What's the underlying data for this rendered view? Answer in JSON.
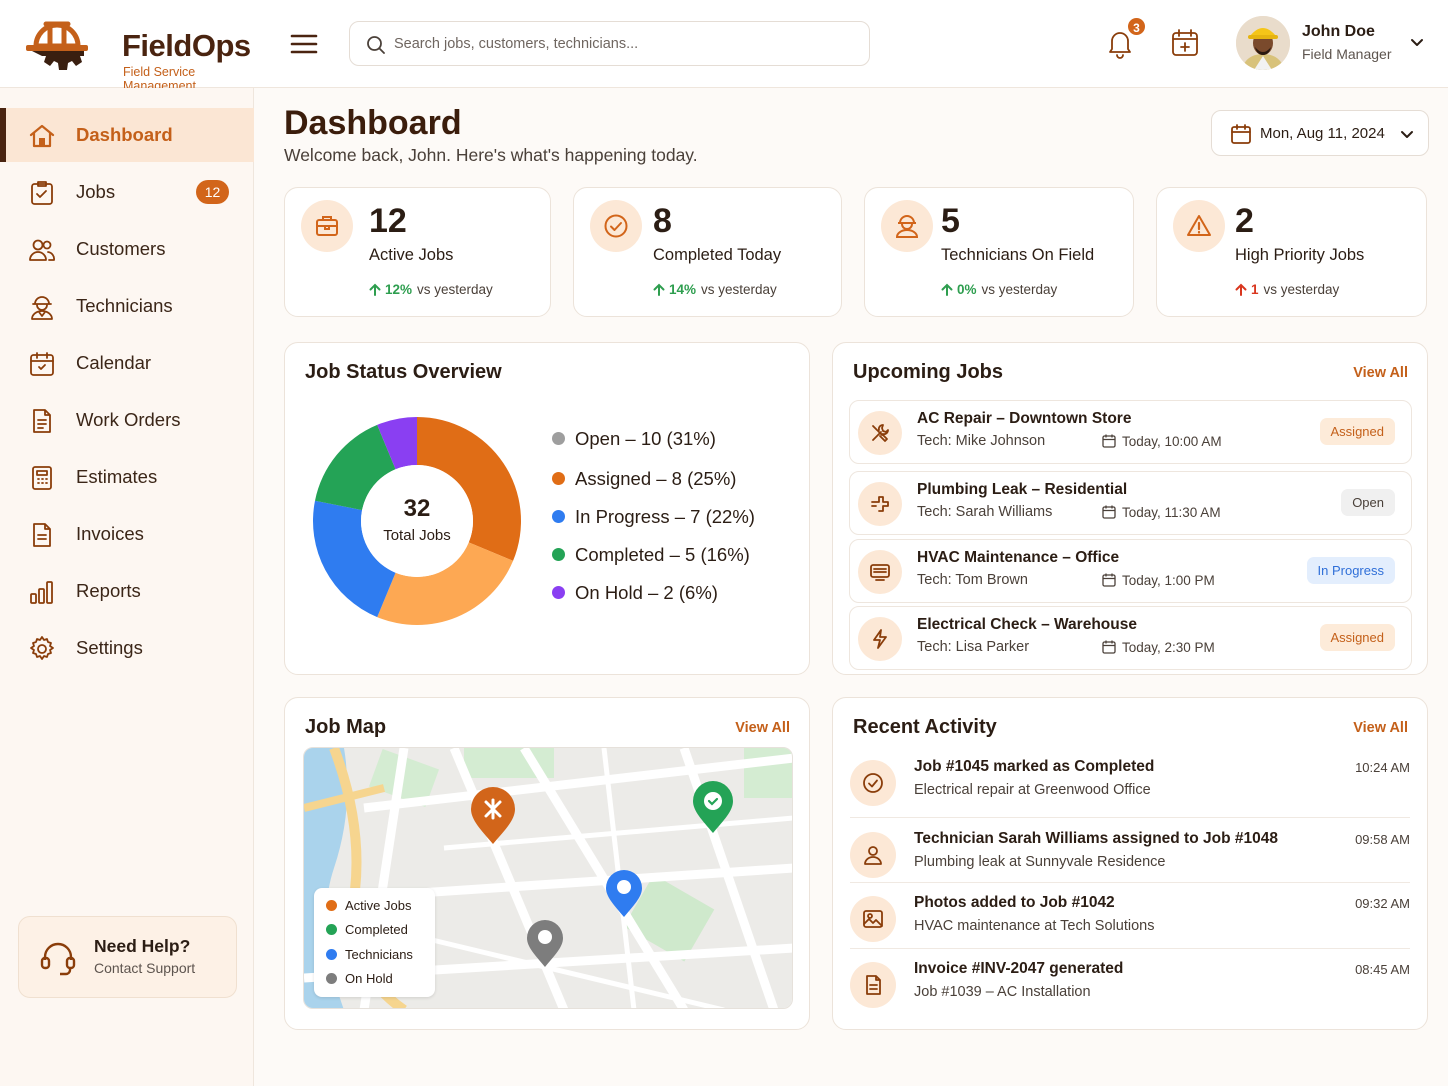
{
  "brand": {
    "name": "FieldOps",
    "tagline": "Field Service Management"
  },
  "search": {
    "placeholder": "Search jobs, customers, technicians..."
  },
  "header": {
    "notifications_count": "3",
    "user_name": "John Doe",
    "user_role": "Field Manager"
  },
  "sidebar": {
    "items": [
      {
        "label": "Dashboard",
        "icon": "home-icon",
        "active": true
      },
      {
        "label": "Jobs",
        "icon": "clipboard-icon",
        "badge": "12"
      },
      {
        "label": "Customers",
        "icon": "users-icon"
      },
      {
        "label": "Technicians",
        "icon": "technician-icon"
      },
      {
        "label": "Calendar",
        "icon": "calendar-icon"
      },
      {
        "label": "Work Orders",
        "icon": "document-icon"
      },
      {
        "label": "Estimates",
        "icon": "calculator-icon"
      },
      {
        "label": "Invoices",
        "icon": "invoice-icon"
      },
      {
        "label": "Reports",
        "icon": "bar-chart-icon"
      },
      {
        "label": "Settings",
        "icon": "gear-icon"
      }
    ],
    "help": {
      "title": "Need Help?",
      "subtitle": "Contact Support"
    }
  },
  "page": {
    "title": "Dashboard",
    "subtitle": "Welcome back, John. Here's what's happening today.",
    "date": "Mon, Aug 11, 2024"
  },
  "stats": [
    {
      "value": "12",
      "label": "Active Jobs",
      "trend_value": "12%",
      "trend_text": "vs yesterday",
      "trend_color": "#2e9e4f",
      "icon": "briefcase-icon"
    },
    {
      "value": "8",
      "label": "Completed Today",
      "trend_value": "14%",
      "trend_text": "vs yesterday",
      "trend_color": "#2e9e4f",
      "icon": "check-circle-icon"
    },
    {
      "value": "5",
      "label": "Technicians On Field",
      "trend_value": "0%",
      "trend_text": "vs yesterday",
      "trend_color": "#2e9e4f",
      "icon": "technician-icon"
    },
    {
      "value": "2",
      "label": "High Priority Jobs",
      "trend_value": "1",
      "trend_text": "vs yesterday",
      "trend_color": "#d9361e",
      "icon": "warning-icon"
    }
  ],
  "job_status": {
    "title": "Job Status Overview",
    "center_value": "32",
    "center_label": "Total Jobs",
    "legend": [
      {
        "text": "Open – 10 (31%)",
        "color": "#9e9e9e"
      },
      {
        "text": "Assigned – 8 (25%)",
        "color": "#e06d16"
      },
      {
        "text": "In Progress – 7 (22%)",
        "color": "#2f7cf0"
      },
      {
        "text": "Completed – 5 (16%)",
        "color": "#24a356"
      },
      {
        "text": "On Hold – 2 (6%)",
        "color": "#8a3ff2"
      }
    ]
  },
  "chart_data": {
    "type": "pie",
    "title": "Job Status Overview",
    "categories": [
      "Open",
      "Assigned",
      "In Progress",
      "Completed",
      "On Hold"
    ],
    "values": [
      10,
      8,
      7,
      5,
      2
    ],
    "percentages": [
      31,
      25,
      22,
      16,
      6
    ],
    "total": 32,
    "slice_colors": [
      "#e06d16",
      "#fda853",
      "#2f7cf0",
      "#24a356",
      "#8a3ff2"
    ]
  },
  "upcoming": {
    "title": "Upcoming Jobs",
    "view_all": "View All",
    "jobs": [
      {
        "title": "AC Repair – Downtown Store",
        "tech": "Tech: Mike Johnson",
        "time": "Today, 10:00 AM",
        "status": "Assigned",
        "icon": "tools-icon"
      },
      {
        "title": "Plumbing Leak – Residential",
        "tech": "Tech: Sarah Williams",
        "time": "Today, 11:30 AM",
        "status": "Open",
        "icon": "pipe-icon"
      },
      {
        "title": "HVAC Maintenance – Office",
        "tech": "Tech: Tom Brown",
        "time": "Today, 1:00 PM",
        "status": "In Progress",
        "icon": "hvac-icon"
      },
      {
        "title": "Electrical Check – Warehouse",
        "tech": "Tech: Lisa Parker",
        "time": "Today, 2:30 PM",
        "status": "Assigned",
        "icon": "lightning-icon"
      }
    ]
  },
  "map": {
    "title": "Job Map",
    "view_all": "View All",
    "legend": [
      {
        "text": "Active Jobs",
        "color": "#e06d16"
      },
      {
        "text": "Completed",
        "color": "#24a356"
      },
      {
        "text": "Technicians",
        "color": "#2f7cf0"
      },
      {
        "text": "On Hold",
        "color": "#7d7d7d"
      }
    ]
  },
  "activity": {
    "title": "Recent Activity",
    "view_all": "View All",
    "items": [
      {
        "title": "Job #1045 marked as Completed",
        "sub": "Electrical repair at Greenwood Office",
        "time": "10:24 AM",
        "icon": "check-circle-icon"
      },
      {
        "title": "Technician Sarah Williams assigned to Job #1048",
        "sub": "Plumbing leak at Sunnyvale Residence",
        "time": "09:58 AM",
        "icon": "user-icon"
      },
      {
        "title": "Photos added to Job #1042",
        "sub": "HVAC maintenance at Tech Solutions",
        "time": "09:32 AM",
        "icon": "image-icon"
      },
      {
        "title": "Invoice #INV-2047 generated",
        "sub": "Job #1039 – AC Installation",
        "time": "08:45 AM",
        "icon": "invoice-icon"
      }
    ]
  },
  "colors": {
    "accent": "#c4601a",
    "brand_dark": "#4a2410",
    "icon_bg": "#fce8d6",
    "assigned_pill": "#fdebd9",
    "open_pill": "#f0f0f0",
    "progress_pill": "#e3eefd"
  }
}
